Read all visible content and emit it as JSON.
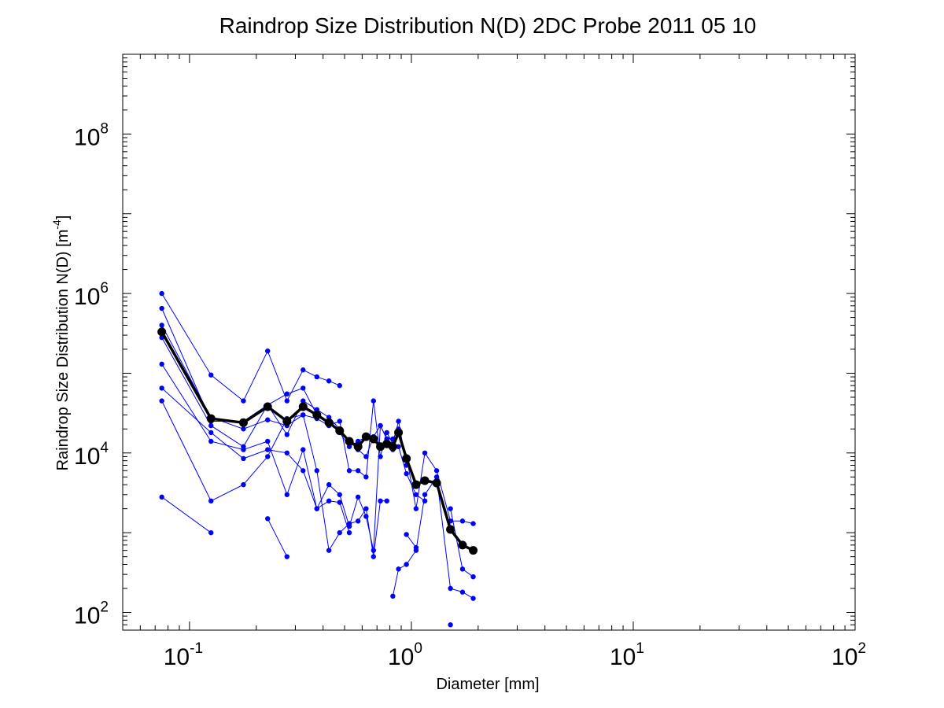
{
  "chart_data": {
    "type": "line",
    "title": "Raindrop Size Distribution N(D) 2DC Probe 2011 05 10",
    "xlabel": "Diameter [mm]",
    "ylabel_base": "Raindrop Size Distribution N(D) [m",
    "ylabel_exp": "-4",
    "ylabel_end": "]",
    "x_scale": "log",
    "y_scale": "log",
    "xlim": [
      0.05,
      100
    ],
    "ylim": [
      60,
      1000000000
    ],
    "grid": false,
    "x_ticks": [
      {
        "value": 0.1,
        "base": "10",
        "exp": "-1"
      },
      {
        "value": 1,
        "base": "10",
        "exp": "0"
      },
      {
        "value": 10,
        "base": "10",
        "exp": "1"
      },
      {
        "value": 100,
        "base": "10",
        "exp": "2"
      }
    ],
    "y_ticks": [
      {
        "value": 100,
        "base": "10",
        "exp": "2"
      },
      {
        "value": 10000,
        "base": "10",
        "exp": "4"
      },
      {
        "value": 1000000,
        "base": "10",
        "exp": "6"
      },
      {
        "value": 100000000,
        "base": "10",
        "exp": "8"
      }
    ],
    "series_color": "#0000ff",
    "mean_color": "#000000",
    "series": [
      {
        "x": [
          0.075,
          0.125,
          0.175,
          0.225,
          0.275,
          0.325,
          0.375,
          0.425,
          0.475
        ],
        "y": [
          1000000,
          95000,
          45000,
          190000,
          45000,
          110000,
          90000,
          80000,
          70000
        ]
      },
      {
        "x": [
          0.075,
          0.125,
          0.175,
          0.225,
          0.275,
          0.325,
          0.375,
          0.425,
          0.475,
          0.525,
          0.575,
          0.625
        ],
        "y": [
          650000,
          25000,
          25000,
          40000,
          55000,
          65000,
          30000,
          25000,
          18000,
          12000,
          14000,
          16000
        ]
      },
      {
        "x": [
          0.075,
          0.125,
          0.175,
          0.225,
          0.275,
          0.325,
          0.375,
          0.425,
          0.475,
          0.525,
          0.575,
          0.625,
          0.675,
          0.725,
          0.775,
          0.825,
          0.875,
          0.95
        ],
        "y": [
          400000,
          28000,
          20000,
          26000,
          22000,
          30000,
          27000,
          22000,
          25000,
          6000,
          6000,
          5000,
          45000,
          9000,
          18000,
          13000,
          25000,
          7000
        ]
      },
      {
        "x": [
          0.075,
          0.125,
          0.175,
          0.225,
          0.275,
          0.325,
          0.375,
          0.425,
          0.475,
          0.525,
          0.575,
          0.625,
          0.675,
          0.725,
          0.775,
          0.825,
          0.875,
          0.95,
          1.05,
          1.15,
          1.3,
          1.5,
          1.7,
          1.9
        ],
        "y": [
          280000,
          22000,
          12000,
          40000,
          17000,
          45000,
          35000,
          28000,
          20000,
          14000,
          11000,
          9000,
          16000,
          22000,
          15000,
          15000,
          20000,
          9000,
          2000,
          10000,
          6000,
          1400,
          1400,
          1300
        ]
      },
      {
        "x": [
          0.075,
          0.125,
          0.175,
          0.225,
          0.275,
          0.325,
          0.375,
          0.425,
          0.475,
          0.525
        ],
        "y": [
          130000,
          14000,
          11000,
          14000,
          3000,
          11000,
          2000,
          2500,
          2400,
          1000
        ]
      },
      {
        "x": [
          0.075,
          0.125,
          0.175,
          0.225,
          0.275,
          0.325,
          0.375,
          0.425,
          0.475,
          0.525,
          0.575,
          0.625,
          0.675,
          0.725,
          0.775,
          0.825,
          0.875,
          0.95,
          1.05,
          1.15
        ],
        "y": [
          65000,
          18000,
          8500,
          11000,
          10000,
          6000,
          2000,
          4000,
          3000,
          1200,
          2800,
          1600,
          600,
          22000,
          15000,
          11000,
          12000,
          5500,
          3000,
          2500
        ]
      },
      {
        "x": [
          0.075,
          0.125,
          0.175,
          0.225,
          0.275,
          0.325,
          0.375,
          0.425,
          0.475,
          0.525,
          0.575,
          0.625,
          0.675,
          0.725,
          0.775
        ],
        "y": [
          45000,
          2500,
          4000,
          9000,
          27000,
          30000,
          6000,
          600,
          1000,
          1300,
          1400,
          2000,
          500,
          2500,
          2500
        ]
      },
      {
        "x": [
          0.075,
          0.125
        ],
        "y": [
          2800,
          1000
        ]
      },
      {
        "x": [
          0.225,
          0.275
        ],
        "y": [
          1500,
          500
        ]
      },
      {
        "x": [
          0.825,
          0.875,
          0.95,
          1.05,
          1.15,
          1.3,
          1.5,
          1.7,
          1.9
        ],
        "y": [
          160,
          350,
          400,
          600,
          3000,
          5000,
          200,
          180,
          150
        ]
      },
      {
        "x": [
          0.95,
          1.05
        ],
        "y": [
          950,
          650
        ]
      },
      {
        "x": [
          1.5,
          1.7,
          1.9
        ],
        "y": [
          2000,
          350,
          280
        ]
      },
      {
        "x": [
          1.5
        ],
        "y": [
          70
        ]
      }
    ],
    "mean_series": {
      "x": [
        0.075,
        0.125,
        0.175,
        0.225,
        0.275,
        0.325,
        0.375,
        0.425,
        0.475,
        0.525,
        0.575,
        0.625,
        0.675,
        0.725,
        0.775,
        0.825,
        0.875,
        0.95,
        1.05,
        1.15,
        1.3,
        1.5,
        1.7,
        1.9
      ],
      "y": [
        330000,
        27000,
        24000,
        38000,
        25000,
        38000,
        30000,
        24000,
        19000,
        14000,
        12000,
        16000,
        15000,
        12000,
        13000,
        12000,
        18000,
        8500,
        4000,
        4500,
        4200,
        1100,
        700,
        600
      ]
    }
  }
}
